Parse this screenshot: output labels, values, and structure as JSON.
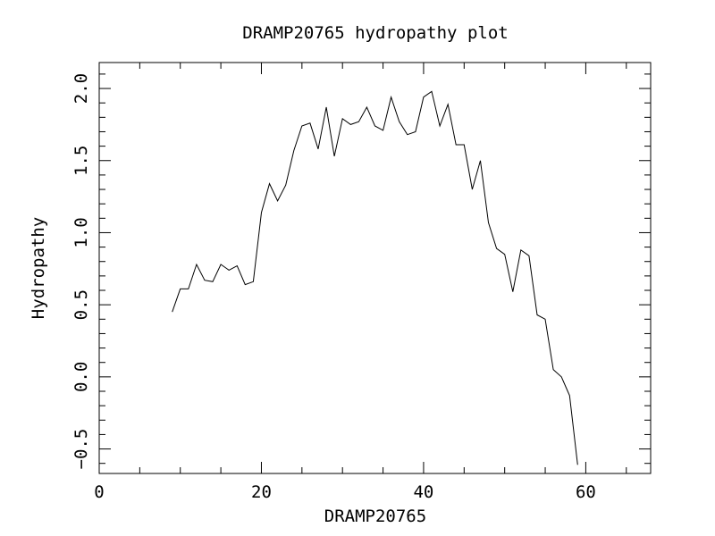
{
  "chart_data": {
    "type": "line",
    "title": "DRAMP20765 hydropathy plot",
    "xlabel": "DRAMP20765",
    "ylabel": "Hydropathy",
    "xlim": [
      0,
      68
    ],
    "ylim": [
      -0.67,
      2.18
    ],
    "xticks": [
      0,
      20,
      40,
      60
    ],
    "xtick_labels": [
      "0",
      "20",
      "40",
      "60"
    ],
    "yticks": [
      -0.5,
      0.0,
      0.5,
      1.0,
      1.5,
      2.0
    ],
    "ytick_labels": [
      "−0.5",
      "0.0",
      "0.5",
      "1.0",
      "1.5",
      "2.0"
    ],
    "grid": false,
    "series": [
      {
        "x": [
          9,
          10,
          11,
          12,
          13,
          14,
          15,
          16,
          17,
          18,
          19,
          20,
          21,
          22,
          23,
          24,
          25,
          26,
          27,
          28,
          29,
          30,
          31,
          32,
          33,
          34,
          35,
          36,
          37,
          38,
          39,
          40,
          41,
          42,
          43,
          44,
          45,
          46,
          47,
          48,
          49,
          50,
          51,
          52,
          53,
          54,
          55,
          56,
          57,
          58,
          59
        ],
        "values": [
          0.45,
          0.61,
          0.61,
          0.78,
          0.67,
          0.66,
          0.78,
          0.74,
          0.77,
          0.64,
          0.66,
          1.14,
          1.34,
          1.22,
          1.33,
          1.57,
          1.74,
          1.76,
          1.58,
          1.87,
          1.53,
          1.79,
          1.75,
          1.77,
          1.87,
          1.74,
          1.71,
          1.94,
          1.77,
          1.68,
          1.7,
          1.94,
          1.98,
          1.74,
          1.89,
          1.61,
          1.61,
          1.3,
          1.5,
          1.07,
          0.89,
          0.85,
          0.59,
          0.88,
          0.84,
          0.43,
          0.4,
          0.05,
          0.0,
          -0.13,
          -0.61
        ]
      }
    ]
  }
}
